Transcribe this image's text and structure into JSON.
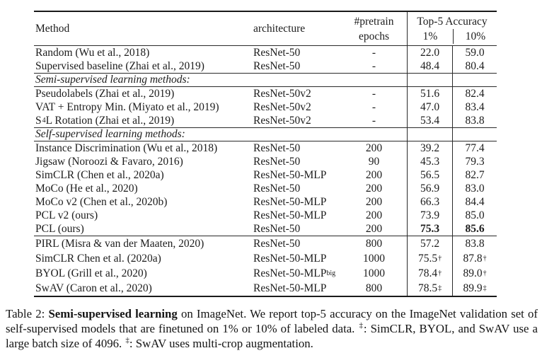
{
  "table": {
    "header": {
      "method": "Method",
      "architecture": "architecture",
      "epochs_line1": "#pretrain",
      "epochs_line2": "epochs",
      "accuracy_group": "Top-5 Accuracy",
      "acc_col1": "1%",
      "acc_col2": "10%"
    },
    "rows": [
      {
        "method": "Random (Wu et al., 2018)",
        "arch": "ResNet-50",
        "epochs": "-",
        "acc1": "22.0",
        "acc10": "59.0"
      },
      {
        "method": "Supervised baseline (Zhai et al., 2019)",
        "arch": "ResNet-50",
        "epochs": "-",
        "acc1": "48.4",
        "acc10": "80.4"
      },
      {
        "section": "Semi-supervised learning methods:"
      },
      {
        "method": "Pseudolabels (Zhai et al., 2019)",
        "arch": "ResNet-50v2",
        "epochs": "-",
        "acc1": "51.6",
        "acc10": "82.4"
      },
      {
        "method": "VAT + Entropy Min. (Miyato et al., 2019)",
        "arch": "ResNet-50v2",
        "epochs": "-",
        "acc1": "47.0",
        "acc10": "83.4"
      },
      {
        "method": "S",
        "method_sup": "4",
        "method_post": "L Rotation (Zhai et al., 2019)",
        "arch": "ResNet-50v2",
        "epochs": "-",
        "acc1": "53.4",
        "acc10": "83.8"
      },
      {
        "section": "Self-supervised learning methods:"
      },
      {
        "method": "Instance Discrimination (Wu et al., 2018)",
        "arch": "ResNet-50",
        "epochs": "200",
        "acc1": "39.2",
        "acc10": "77.4"
      },
      {
        "method": "Jigsaw (Noroozi & Favaro, 2016)",
        "arch": "ResNet-50",
        "epochs": "90",
        "acc1": "45.3",
        "acc10": "79.3"
      },
      {
        "method": "SimCLR (Chen et al., 2020a)",
        "arch": "ResNet-50-MLP",
        "epochs": "200",
        "acc1": "56.5",
        "acc10": "82.7"
      },
      {
        "method": "MoCo (He et al., 2020)",
        "arch": "ResNet-50",
        "epochs": "200",
        "acc1": "56.9",
        "acc10": "83.0"
      },
      {
        "method": "MoCo v2 (Chen et al., 2020b)",
        "arch": "ResNet-50-MLP",
        "epochs": "200",
        "acc1": "66.3",
        "acc10": "84.4"
      },
      {
        "method": "PCL v2 (ours)",
        "arch": "ResNet-50-MLP",
        "epochs": "200",
        "acc1": "73.9",
        "acc10": "85.0"
      },
      {
        "method": "PCL (ours)",
        "arch": "ResNet-50",
        "epochs": "200",
        "acc1": "75.3",
        "acc10": "85.6"
      },
      {
        "method": "PIRL (Misra & van der Maaten, 2020)",
        "arch": "ResNet-50",
        "epochs": "800",
        "acc1": "57.2",
        "acc10": "83.8"
      },
      {
        "method": "SimCLR Chen et al. (2020a)",
        "arch": "ResNet-50-MLP",
        "epochs": "1000",
        "acc1": "75.5",
        "acc1_sup": "†",
        "acc10": "87.8",
        "acc10_sup": "†"
      },
      {
        "method": "BYOL (Grill et al., 2020)",
        "arch": "ResNet-50-MLP",
        "arch_sub": "big",
        "epochs": "1000",
        "acc1": "78.4",
        "acc1_sup": "†",
        "acc10": "89.0",
        "acc10_sup": "†"
      },
      {
        "method": "SwAV (Caron et al., 2020)",
        "arch": "ResNet-50-MLP",
        "epochs": "800",
        "acc1": "78.5",
        "acc1_sup": "‡",
        "acc10": "89.9",
        "acc10_sup": "‡"
      }
    ]
  },
  "caption": {
    "prefix": "Table 2: ",
    "bold": "Semi-supervised learning",
    "body1": " on ImageNet. We report top-5 accuracy on the ImageNet validation set of self-supervised models that are finetuned on 1% or 10% of labeled data. ",
    "marker1": "‡",
    "body2": ": SimCLR, BYOL, and SwAV use a large batch size of 4096. ",
    "marker2": "‡",
    "body3": ": SwAV uses multi-crop augmentation."
  },
  "colors": {
    "text": "#1c1c1c",
    "rule": "#2a2a2a",
    "background": "#ffffff"
  }
}
